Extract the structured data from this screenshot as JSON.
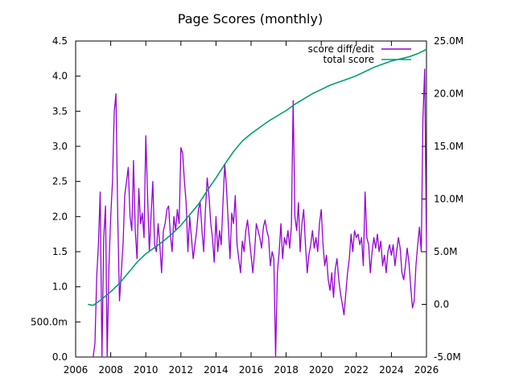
{
  "chart_data": {
    "type": "line",
    "title": "Page Scores (monthly)",
    "xlabel": "",
    "ylabel": "",
    "y2label": "",
    "grid": false,
    "legend_position": "top-right",
    "x_axis": {
      "range": [
        2006,
        2026
      ],
      "tick_labels": [
        "2006",
        "2008",
        "2010",
        "2012",
        "2014",
        "2016",
        "2018",
        "2020",
        "2022",
        "2024",
        "2026"
      ]
    },
    "y_axis_left": {
      "range": [
        0,
        4.5
      ],
      "tick_values": [
        0,
        0.5,
        1,
        1.5,
        2,
        2.5,
        3,
        3.5,
        4,
        4.5
      ],
      "tick_labels": [
        "0.0",
        "500.0m",
        "1.0",
        "1.5",
        "2.0",
        "2.5",
        "3.0",
        "3.5",
        "4.0",
        "4.5"
      ]
    },
    "y_axis_right": {
      "range": [
        -5000000,
        25000000
      ],
      "tick_values": [
        -5000000,
        0,
        5000000,
        10000000,
        15000000,
        20000000,
        25000000
      ],
      "tick_labels": [
        "-5.0M",
        "0.0",
        "5.0M",
        "10.0M",
        "15.0M",
        "20.0M",
        "25.0M"
      ]
    },
    "series": [
      {
        "name": "score diff/edit",
        "axis": "left",
        "color": "#9400d3",
        "points": [
          [
            2007.0,
            0.0
          ],
          [
            2007.1,
            0.2
          ],
          [
            2007.2,
            1.15
          ],
          [
            2007.3,
            1.6
          ],
          [
            2007.4,
            2.35
          ],
          [
            2007.5,
            0.0
          ],
          [
            2007.6,
            1.7
          ],
          [
            2007.7,
            2.15
          ],
          [
            2007.8,
            0.0
          ],
          [
            2007.9,
            1.3
          ],
          [
            2008.0,
            2.0
          ],
          [
            2008.1,
            2.5
          ],
          [
            2008.2,
            3.5
          ],
          [
            2008.3,
            3.75
          ],
          [
            2008.4,
            2.0
          ],
          [
            2008.5,
            0.8
          ],
          [
            2008.6,
            1.2
          ],
          [
            2008.7,
            1.6
          ],
          [
            2008.8,
            2.3
          ],
          [
            2008.9,
            2.5
          ],
          [
            2009.0,
            2.7
          ],
          [
            2009.1,
            2.0
          ],
          [
            2009.2,
            1.8
          ],
          [
            2009.3,
            2.8
          ],
          [
            2009.4,
            1.8
          ],
          [
            2009.5,
            1.4
          ],
          [
            2009.6,
            2.4
          ],
          [
            2009.7,
            1.9
          ],
          [
            2009.8,
            2.05
          ],
          [
            2009.9,
            1.7
          ],
          [
            2010.0,
            3.15
          ],
          [
            2010.1,
            2.3
          ],
          [
            2010.2,
            1.5
          ],
          [
            2010.3,
            2.0
          ],
          [
            2010.4,
            2.5
          ],
          [
            2010.5,
            1.6
          ],
          [
            2010.6,
            1.5
          ],
          [
            2010.7,
            1.9
          ],
          [
            2010.8,
            1.6
          ],
          [
            2010.9,
            1.2
          ],
          [
            2011.0,
            1.8
          ],
          [
            2011.1,
            1.9
          ],
          [
            2011.2,
            2.1
          ],
          [
            2011.3,
            2.15
          ],
          [
            2011.4,
            1.75
          ],
          [
            2011.5,
            1.5
          ],
          [
            2011.6,
            2.0
          ],
          [
            2011.7,
            1.8
          ],
          [
            2011.8,
            2.1
          ],
          [
            2011.9,
            1.9
          ],
          [
            2012.0,
            2.98
          ],
          [
            2012.1,
            2.9
          ],
          [
            2012.2,
            2.5
          ],
          [
            2012.3,
            2.2
          ],
          [
            2012.4,
            1.5
          ],
          [
            2012.5,
            2.0
          ],
          [
            2012.6,
            1.7
          ],
          [
            2012.7,
            1.4
          ],
          [
            2012.8,
            1.6
          ],
          [
            2012.9,
            1.8
          ],
          [
            2013.0,
            2.1
          ],
          [
            2013.1,
            2.2
          ],
          [
            2013.2,
            1.8
          ],
          [
            2013.3,
            1.5
          ],
          [
            2013.4,
            2.1
          ],
          [
            2013.5,
            2.55
          ],
          [
            2013.6,
            2.3
          ],
          [
            2013.7,
            1.9
          ],
          [
            2013.8,
            1.7
          ],
          [
            2013.9,
            1.35
          ],
          [
            2014.0,
            2.0
          ],
          [
            2014.1,
            1.5
          ],
          [
            2014.2,
            1.8
          ],
          [
            2014.3,
            1.6
          ],
          [
            2014.4,
            2.2
          ],
          [
            2014.5,
            2.75
          ],
          [
            2014.6,
            2.4
          ],
          [
            2014.7,
            1.9
          ],
          [
            2014.8,
            1.4
          ],
          [
            2014.9,
            2.05
          ],
          [
            2015.0,
            1.9
          ],
          [
            2015.1,
            2.3
          ],
          [
            2015.2,
            1.6
          ],
          [
            2015.3,
            1.4
          ],
          [
            2015.4,
            1.2
          ],
          [
            2015.5,
            1.65
          ],
          [
            2015.6,
            1.5
          ],
          [
            2015.7,
            1.8
          ],
          [
            2015.8,
            1.95
          ],
          [
            2015.9,
            1.7
          ],
          [
            2016.0,
            1.45
          ],
          [
            2016.1,
            1.2
          ],
          [
            2016.2,
            1.5
          ],
          [
            2016.3,
            1.9
          ],
          [
            2016.4,
            1.8
          ],
          [
            2016.5,
            1.7
          ],
          [
            2016.6,
            1.55
          ],
          [
            2016.7,
            1.85
          ],
          [
            2016.8,
            1.95
          ],
          [
            2016.9,
            1.8
          ],
          [
            2017.0,
            1.7
          ],
          [
            2017.1,
            1.3
          ],
          [
            2017.2,
            1.5
          ],
          [
            2017.3,
            1.4
          ],
          [
            2017.4,
            0.0
          ],
          [
            2017.5,
            1.2
          ],
          [
            2017.6,
            1.5
          ],
          [
            2017.7,
            1.9
          ],
          [
            2017.8,
            1.4
          ],
          [
            2017.9,
            1.7
          ],
          [
            2018.0,
            1.6
          ],
          [
            2018.1,
            1.8
          ],
          [
            2018.2,
            1.55
          ],
          [
            2018.3,
            1.85
          ],
          [
            2018.4,
            3.65
          ],
          [
            2018.5,
            2.0
          ],
          [
            2018.6,
            1.8
          ],
          [
            2018.7,
            2.2
          ],
          [
            2018.8,
            1.5
          ],
          [
            2018.9,
            1.9
          ],
          [
            2019.0,
            2.1
          ],
          [
            2019.1,
            1.6
          ],
          [
            2019.2,
            1.2
          ],
          [
            2019.3,
            1.45
          ],
          [
            2019.4,
            1.6
          ],
          [
            2019.5,
            1.8
          ],
          [
            2019.6,
            1.55
          ],
          [
            2019.7,
            1.7
          ],
          [
            2019.8,
            1.5
          ],
          [
            2019.9,
            1.9
          ],
          [
            2020.0,
            2.1
          ],
          [
            2020.1,
            1.6
          ],
          [
            2020.2,
            1.3
          ],
          [
            2020.3,
            1.45
          ],
          [
            2020.4,
            1.1
          ],
          [
            2020.5,
            0.95
          ],
          [
            2020.6,
            1.2
          ],
          [
            2020.7,
            0.85
          ],
          [
            2020.8,
            1.25
          ],
          [
            2020.9,
            1.4
          ],
          [
            2021.0,
            1.1
          ],
          [
            2021.1,
            0.9
          ],
          [
            2021.2,
            0.75
          ],
          [
            2021.3,
            0.6
          ],
          [
            2021.4,
            0.9
          ],
          [
            2021.5,
            1.2
          ],
          [
            2021.6,
            1.4
          ],
          [
            2021.7,
            1.75
          ],
          [
            2021.8,
            1.5
          ],
          [
            2021.9,
            1.8
          ],
          [
            2022.0,
            1.7
          ],
          [
            2022.1,
            1.75
          ],
          [
            2022.2,
            1.6
          ],
          [
            2022.3,
            1.7
          ],
          [
            2022.4,
            1.3
          ],
          [
            2022.5,
            2.35
          ],
          [
            2022.6,
            1.7
          ],
          [
            2022.7,
            1.6
          ],
          [
            2022.8,
            1.2
          ],
          [
            2022.9,
            1.5
          ],
          [
            2023.0,
            1.7
          ],
          [
            2023.1,
            1.55
          ],
          [
            2023.2,
            1.75
          ],
          [
            2023.3,
            1.5
          ],
          [
            2023.4,
            1.65
          ],
          [
            2023.5,
            1.3
          ],
          [
            2023.6,
            1.45
          ],
          [
            2023.7,
            1.2
          ],
          [
            2023.8,
            1.5
          ],
          [
            2023.9,
            1.6
          ],
          [
            2024.0,
            1.45
          ],
          [
            2024.1,
            1.6
          ],
          [
            2024.2,
            1.3
          ],
          [
            2024.3,
            1.5
          ],
          [
            2024.4,
            1.7
          ],
          [
            2024.5,
            1.55
          ],
          [
            2024.6,
            1.2
          ],
          [
            2024.7,
            1.1
          ],
          [
            2024.8,
            1.3
          ],
          [
            2024.9,
            1.55
          ],
          [
            2025.0,
            1.35
          ],
          [
            2025.1,
            1.0
          ],
          [
            2025.2,
            0.7
          ],
          [
            2025.3,
            0.8
          ],
          [
            2025.4,
            1.3
          ],
          [
            2025.5,
            1.6
          ],
          [
            2025.6,
            1.85
          ],
          [
            2025.7,
            1.5
          ],
          [
            2025.8,
            3.4
          ],
          [
            2025.9,
            4.1
          ],
          [
            2026.0,
            1.5
          ]
        ]
      },
      {
        "name": "total score",
        "axis": "right",
        "color": "#009e73",
        "points": [
          [
            2006.7,
            0.0
          ],
          [
            2007.0,
            -0.1
          ],
          [
            2007.5,
            0.5
          ],
          [
            2008.0,
            1.2
          ],
          [
            2008.5,
            2.0
          ],
          [
            2009.0,
            3.0
          ],
          [
            2009.5,
            4.0
          ],
          [
            2010.0,
            4.8
          ],
          [
            2010.5,
            5.4
          ],
          [
            2011.0,
            6.0
          ],
          [
            2011.5,
            6.7
          ],
          [
            2012.0,
            7.5
          ],
          [
            2012.5,
            8.5
          ],
          [
            2013.0,
            9.5
          ],
          [
            2013.5,
            10.8
          ],
          [
            2014.0,
            12.0
          ],
          [
            2014.5,
            13.3
          ],
          [
            2015.0,
            14.5
          ],
          [
            2015.5,
            15.5
          ],
          [
            2016.0,
            16.2
          ],
          [
            2016.5,
            16.8
          ],
          [
            2017.0,
            17.4
          ],
          [
            2017.5,
            17.9
          ],
          [
            2018.0,
            18.4
          ],
          [
            2018.5,
            19.0
          ],
          [
            2019.0,
            19.5
          ],
          [
            2019.5,
            20.0
          ],
          [
            2020.0,
            20.4
          ],
          [
            2020.5,
            20.8
          ],
          [
            2021.0,
            21.1
          ],
          [
            2021.5,
            21.4
          ],
          [
            2022.0,
            21.7
          ],
          [
            2022.5,
            22.1
          ],
          [
            2023.0,
            22.5
          ],
          [
            2023.5,
            22.8
          ],
          [
            2024.0,
            23.1
          ],
          [
            2024.5,
            23.3
          ],
          [
            2025.0,
            23.5
          ],
          [
            2025.5,
            23.8
          ],
          [
            2026.0,
            24.2
          ]
        ]
      }
    ]
  }
}
